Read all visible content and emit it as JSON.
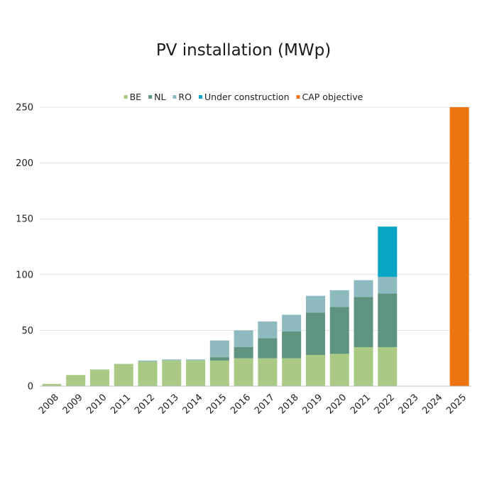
{
  "chart_data": {
    "type": "bar",
    "stacked": true,
    "title": "PV installation (MWp)",
    "xlabel": "",
    "ylabel": "",
    "ylim": [
      0,
      250
    ],
    "yticks": [
      0,
      50,
      100,
      150,
      200,
      250
    ],
    "grid": true,
    "legend_position": "top-center",
    "categories": [
      "2008",
      "2009",
      "2010",
      "2011",
      "2012",
      "2013",
      "2014",
      "2015",
      "2016",
      "2017",
      "2018",
      "2019",
      "2020",
      "2021",
      "2022",
      "2023",
      "2024",
      "2025"
    ],
    "series": [
      {
        "name": "BE",
        "color": "#a9c985",
        "values": [
          2,
          10,
          15,
          20,
          22,
          23,
          23,
          23,
          25,
          25,
          25,
          28,
          29,
          35,
          35,
          0,
          0,
          0
        ]
      },
      {
        "name": "NL",
        "color": "#5e9480",
        "values": [
          0,
          0,
          0,
          0,
          0,
          0,
          0,
          3,
          10,
          18,
          24,
          38,
          42,
          45,
          48,
          0,
          0,
          0
        ]
      },
      {
        "name": "RO",
        "color": "#8eb9bf",
        "values": [
          0,
          0,
          0,
          0,
          1,
          1,
          1,
          15,
          15,
          15,
          15,
          15,
          15,
          15,
          15,
          0,
          0,
          0
        ]
      },
      {
        "name": "Under construction",
        "color": "#08a6c4",
        "values": [
          0,
          0,
          0,
          0,
          0,
          0,
          0,
          0,
          0,
          0,
          0,
          0,
          0,
          0,
          45,
          0,
          0,
          0
        ]
      },
      {
        "name": "CAP objective",
        "color": "#ee7410",
        "values": [
          0,
          0,
          0,
          0,
          0,
          0,
          0,
          0,
          0,
          0,
          0,
          0,
          0,
          0,
          0,
          0,
          0,
          250
        ]
      }
    ]
  }
}
